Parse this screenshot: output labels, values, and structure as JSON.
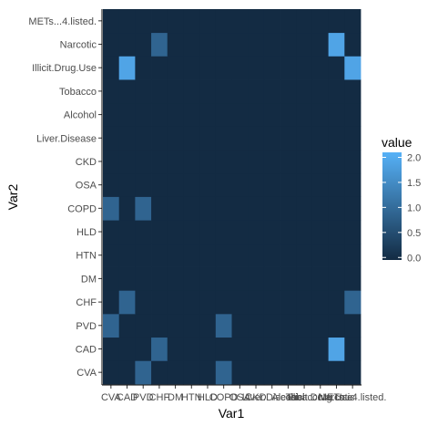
{
  "chart_data": {
    "type": "heatmap",
    "xlabel": "Var1",
    "ylabel": "Var2",
    "x_categories": [
      "CVA",
      "CAD",
      "PVD",
      "CHF",
      "DM",
      "HTN",
      "HLD",
      "COPD",
      "OSA",
      "CKD",
      "Liver.Disease",
      "Alcohol",
      "Tobacco",
      "Illicit.Drug.Use",
      "Narcotic",
      "METs...4.listed."
    ],
    "y_categories": [
      "CVA",
      "CAD",
      "PVD",
      "CHF",
      "DM",
      "HTN",
      "HLD",
      "COPD",
      "OSA",
      "CKD",
      "Liver.Disease",
      "Alcohol",
      "Tobacco",
      "Illicit.Drug.Use",
      "Narcotic",
      "METs...4.listed."
    ],
    "cells": [
      {
        "x": "CHF",
        "y": "CAD",
        "value": 0.9
      },
      {
        "x": "PVD",
        "y": "CVA",
        "value": 0.9
      },
      {
        "x": "COPD",
        "y": "CVA",
        "value": 0.9
      },
      {
        "x": "Narcotic",
        "y": "CAD",
        "value": 1.9
      },
      {
        "x": "CVA",
        "y": "PVD",
        "value": 0.9
      },
      {
        "x": "COPD",
        "y": "PVD",
        "value": 0.9
      },
      {
        "x": "CAD",
        "y": "CHF",
        "value": 0.9
      },
      {
        "x": "METs...4.listed.",
        "y": "CHF",
        "value": 0.9
      },
      {
        "x": "CVA",
        "y": "COPD",
        "value": 0.9
      },
      {
        "x": "PVD",
        "y": "COPD",
        "value": 0.9
      },
      {
        "x": "CAD",
        "y": "Illicit.Drug.Use",
        "value": 1.9
      },
      {
        "x": "METs...4.listed.",
        "y": "Illicit.Drug.Use",
        "value": 1.9
      },
      {
        "x": "CHF",
        "y": "Narcotic",
        "value": 0.9
      },
      {
        "x": "Narcotic",
        "y": "Narcotic",
        "value": 1.9
      }
    ],
    "value_range": [
      0,
      2.1
    ],
    "legend": {
      "title": "value",
      "ticks": [
        {
          "value": 0.0,
          "label": "0.0"
        },
        {
          "value": 0.5,
          "label": "0.5"
        },
        {
          "value": 1.0,
          "label": "1.0"
        },
        {
          "value": 1.5,
          "label": "1.5"
        },
        {
          "value": 2.0,
          "label": "2.0"
        }
      ],
      "placement": "right"
    },
    "colors": {
      "low": "#132B43",
      "high": "#56B1F7",
      "panel_background": "#ffffff",
      "axis_line": "#000000"
    }
  }
}
